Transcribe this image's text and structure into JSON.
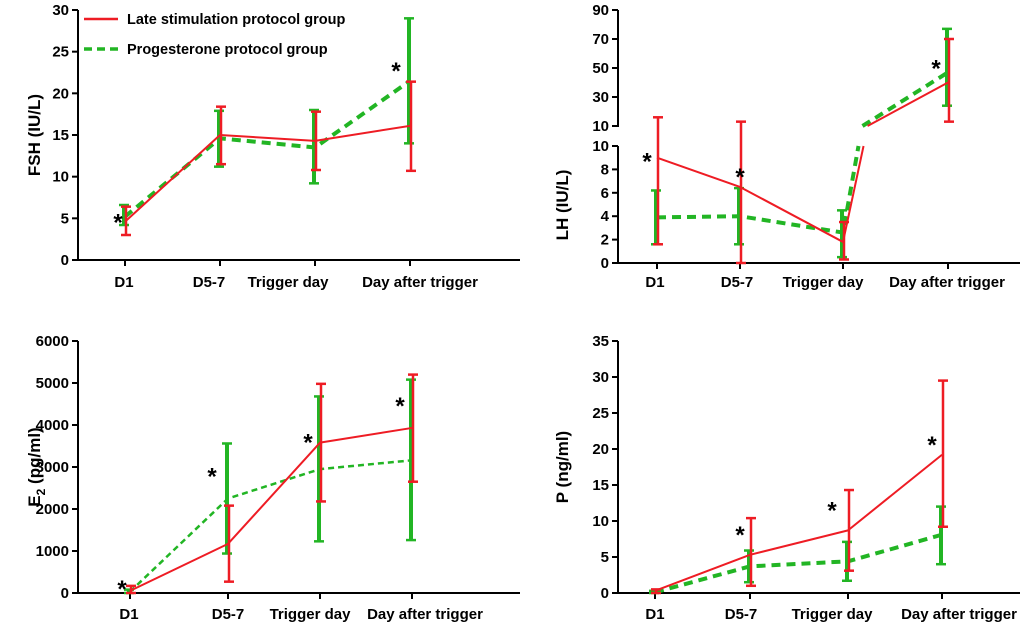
{
  "colors": {
    "late": "#ee1c24",
    "prog": "#22b524",
    "axis": "#000000"
  },
  "legend": {
    "late_label": "Late stimulation protocol group",
    "prog_label": "Progesterone protocol group"
  },
  "chart_data": [
    {
      "id": "fsh",
      "type": "line",
      "title": "",
      "ylabel": "FSH (IU/L)",
      "ylim": [
        0,
        30
      ],
      "yticks": [
        "0",
        "5",
        "10",
        "15",
        "20",
        "25",
        "30"
      ],
      "categories": [
        "D1",
        "D5-7",
        "Trigger day",
        "Day after trigger"
      ],
      "asterisks": [
        "*",
        "",
        "",
        "*"
      ],
      "series": [
        {
          "name": "Late stimulation protocol group",
          "values": [
            4.6,
            15.0,
            14.3,
            16.1
          ],
          "err_low": [
            3.0,
            11.5,
            10.8,
            10.7
          ],
          "err_high": [
            6.4,
            18.4,
            17.8,
            21.4
          ]
        },
        {
          "name": "Progesterone protocol group",
          "values": [
            5.2,
            14.6,
            13.5,
            21.5
          ],
          "err_low": [
            4.2,
            11.2,
            9.2,
            14.0
          ],
          "err_high": [
            6.6,
            17.9,
            18.0,
            29.0
          ]
        }
      ]
    },
    {
      "id": "lh",
      "type": "line",
      "title": "",
      "ylabel": "LH (IU/L)",
      "ylim": [
        0,
        90
      ],
      "axis_break": {
        "lower": [
          0,
          10
        ],
        "upper": [
          10,
          90
        ]
      },
      "yticks_lower": [
        "0",
        "2",
        "4",
        "6",
        "8",
        "10"
      ],
      "yticks_upper": [
        "10",
        "30",
        "50",
        "70",
        "90"
      ],
      "categories": [
        "D1",
        "D5-7",
        "Trigger day",
        "Day after trigger"
      ],
      "asterisks": [
        "*",
        "*",
        "",
        "*"
      ],
      "series": [
        {
          "name": "Late stimulation protocol group",
          "values": [
            9.0,
            6.5,
            1.8,
            40.0
          ],
          "err_low": [
            1.6,
            0.0,
            0.3,
            13.0
          ],
          "err_high": [
            16.0,
            13.0,
            3.5,
            70.0
          ]
        },
        {
          "name": "Progesterone protocol group",
          "values": [
            3.9,
            4.0,
            2.6,
            47.0
          ],
          "err_low": [
            1.6,
            1.6,
            0.5,
            24.0
          ],
          "err_high": [
            6.2,
            6.4,
            4.5,
            77.0
          ]
        }
      ]
    },
    {
      "id": "e2",
      "type": "line",
      "title": "",
      "ylabel": "E2 (pg/ml)",
      "ylabel_main": "E",
      "ylabel_sub": "2",
      "ylabel_rest": " (pg/ml)",
      "ylim": [
        0,
        6000
      ],
      "yticks": [
        "0",
        "1000",
        "2000",
        "3000",
        "4000",
        "5000",
        "6000"
      ],
      "categories": [
        "D1",
        "D5-7",
        "Trigger day",
        "Day after trigger"
      ],
      "asterisks": [
        "*",
        "*",
        "*",
        "*"
      ],
      "series": [
        {
          "name": "Late stimulation protocol group",
          "values": [
            50,
            1170,
            3580,
            3930
          ],
          "err_low": [
            0,
            270,
            2180,
            2650
          ],
          "err_high": [
            170,
            2080,
            4980,
            5200
          ]
        },
        {
          "name": "Progesterone protocol group",
          "values": [
            30,
            2250,
            2950,
            3160
          ],
          "err_low": [
            0,
            940,
            1230,
            1260
          ],
          "err_high": [
            80,
            3560,
            4680,
            5080
          ]
        }
      ]
    },
    {
      "id": "p",
      "type": "line",
      "title": "",
      "ylabel": "P (ng/ml)",
      "ylim": [
        0,
        35
      ],
      "yticks": [
        "0",
        "5",
        "10",
        "15",
        "20",
        "25",
        "30",
        "35"
      ],
      "categories": [
        "D1",
        "D5-7",
        "Trigger day",
        "Day after trigger"
      ],
      "asterisks": [
        "",
        "*",
        "*",
        "*"
      ],
      "series": [
        {
          "name": "Late stimulation protocol group",
          "values": [
            0.3,
            5.3,
            8.7,
            19.2
          ],
          "err_low": [
            0.0,
            1.0,
            3.1,
            9.2
          ],
          "err_high": [
            0.5,
            10.4,
            14.3,
            29.5
          ]
        },
        {
          "name": "Progesterone protocol group",
          "values": [
            0.1,
            3.7,
            4.4,
            8.1
          ],
          "err_low": [
            0.0,
            1.5,
            1.7,
            4.0
          ],
          "err_high": [
            0.3,
            5.9,
            7.1,
            12.0
          ]
        }
      ]
    }
  ]
}
